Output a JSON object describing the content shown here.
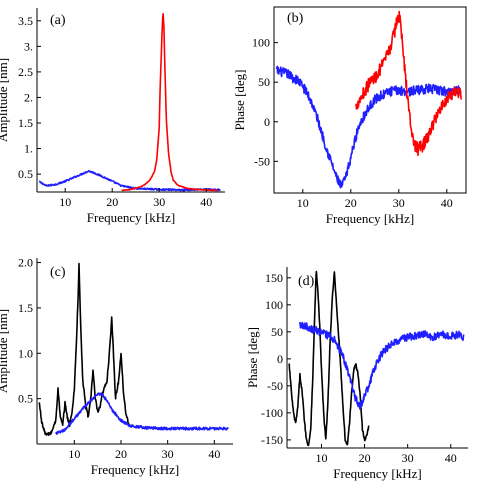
{
  "chart_data": [
    {
      "panel_label": "(a)",
      "type": "line",
      "frame": "axes",
      "xlabel": "Frequency [kHz]",
      "ylabel": "Amplitude [nm]",
      "xlim": [
        4,
        44
      ],
      "ylim": [
        0.15,
        3.75
      ],
      "xticks": [
        10,
        20,
        30,
        40
      ],
      "yticks": [
        0.5,
        1.0,
        1.5,
        2.0,
        2.5,
        3.0,
        3.5
      ],
      "ytick_labels": [
        "0.5",
        "1.",
        "1.5",
        "2.",
        "2.5",
        "3.",
        "3.5"
      ],
      "series": [
        {
          "color": "#1f1fff",
          "noise": 0.015,
          "x": [
            4.5,
            6,
            8,
            10,
            12,
            14,
            15,
            16,
            18,
            20,
            22,
            25,
            30,
            35,
            40,
            43
          ],
          "y": [
            0.35,
            0.27,
            0.3,
            0.36,
            0.44,
            0.52,
            0.56,
            0.53,
            0.45,
            0.36,
            0.27,
            0.22,
            0.2,
            0.19,
            0.2,
            0.19
          ]
        },
        {
          "color": "#ff0000",
          "noise": 0.004,
          "x": [
            22,
            24,
            26,
            27,
            28,
            29,
            29.5,
            30,
            30.2,
            30.5,
            30.8,
            31,
            31.2,
            31.5,
            32,
            32.5,
            33,
            34,
            36,
            38,
            40,
            42.5
          ],
          "y": [
            0.18,
            0.2,
            0.25,
            0.3,
            0.38,
            0.55,
            0.8,
            1.4,
            2.2,
            3.0,
            3.68,
            3.4,
            2.6,
            1.6,
            0.9,
            0.55,
            0.38,
            0.28,
            0.22,
            0.2,
            0.19,
            0.18
          ]
        }
      ]
    },
    {
      "panel_label": "(b)",
      "type": "line",
      "frame": "box",
      "xlabel": "Frequency [kHz]",
      "ylabel": "Phase [deg]",
      "xlim": [
        4,
        44
      ],
      "ylim": [
        -90,
        145
      ],
      "xticks": [
        10,
        20,
        30,
        40
      ],
      "yticks": [
        -50,
        0,
        50,
        100
      ],
      "series": [
        {
          "color": "#1f1fff",
          "noise": 6,
          "x": [
            4.5,
            6,
            7,
            8,
            9,
            10,
            11,
            12,
            13,
            14,
            15,
            16,
            17,
            18,
            19,
            20,
            21,
            22,
            23,
            24,
            25,
            26,
            28,
            30,
            32,
            34,
            36,
            38,
            40,
            42,
            43
          ],
          "y": [
            65,
            62,
            60,
            55,
            52,
            45,
            35,
            22,
            5,
            -15,
            -35,
            -52,
            -70,
            -82,
            -70,
            -45,
            -20,
            0,
            10,
            20,
            28,
            32,
            38,
            40,
            38,
            40,
            42,
            40,
            38,
            40,
            40
          ]
        },
        {
          "color": "#ff0000",
          "noise": 8,
          "x": [
            21,
            22,
            23,
            24,
            25,
            26,
            27,
            28,
            29,
            29.5,
            30,
            30.5,
            31,
            32,
            33,
            34,
            35,
            36,
            37,
            38,
            39,
            40,
            41,
            42,
            43
          ],
          "y": [
            20,
            30,
            40,
            50,
            55,
            65,
            75,
            90,
            110,
            125,
            135,
            120,
            80,
            20,
            -25,
            -35,
            -30,
            -20,
            -5,
            10,
            20,
            30,
            35,
            40,
            35
          ]
        }
      ]
    },
    {
      "panel_label": "(c)",
      "type": "line",
      "frame": "axes",
      "xlabel": "Frequency [kHz]",
      "ylabel": "Amplitude [nm]",
      "xlim": [
        2,
        44
      ],
      "ylim": [
        0.0,
        2.05
      ],
      "xticks": [
        10,
        20,
        30,
        40
      ],
      "yticks": [
        0.5,
        1.0,
        1.5,
        2.0
      ],
      "ytick_labels": [
        "0.5",
        "1.0",
        "1.5",
        "2.0"
      ],
      "series": [
        {
          "color": "#000000",
          "noise": 0.02,
          "x": [
            2.5,
            3,
            3.5,
            4,
            5,
            6,
            6.5,
            7,
            7.5,
            8,
            8.5,
            9,
            9.5,
            10,
            10.5,
            10.8,
            11,
            11.3,
            11.8,
            12.5,
            13,
            13.5,
            14,
            14.5,
            15,
            15.5,
            16,
            17,
            17.5,
            18,
            18.3,
            18.8,
            19.5,
            20,
            20.5,
            21,
            21.5,
            22
          ],
          "y": [
            0.45,
            0.25,
            0.15,
            0.1,
            0.12,
            0.25,
            0.6,
            0.3,
            0.2,
            0.45,
            0.3,
            0.2,
            0.35,
            0.6,
            1.2,
            1.6,
            1.97,
            1.4,
            0.7,
            0.4,
            0.3,
            0.5,
            0.8,
            0.5,
            0.35,
            0.4,
            0.55,
            0.7,
            1.0,
            1.38,
            1.1,
            0.5,
            0.7,
            1.0,
            0.6,
            0.35,
            0.25,
            0.2
          ]
        },
        {
          "color": "#1f1fff",
          "noise": 0.015,
          "x": [
            6,
            7,
            8,
            9,
            10,
            11,
            12,
            13,
            14,
            15,
            16,
            17,
            18,
            20,
            22,
            25,
            30,
            35,
            40,
            43
          ],
          "y": [
            0.12,
            0.13,
            0.16,
            0.22,
            0.28,
            0.34,
            0.4,
            0.45,
            0.5,
            0.55,
            0.54,
            0.48,
            0.38,
            0.26,
            0.2,
            0.18,
            0.17,
            0.17,
            0.17,
            0.17
          ]
        }
      ]
    },
    {
      "panel_label": "(d)",
      "type": "line",
      "frame": "axes",
      "xlabel": "Frequency [kHz]",
      "ylabel": "Phase [deg]",
      "xlim": [
        2,
        44
      ],
      "ylim": [
        -165,
        170
      ],
      "xticks": [
        10,
        20,
        30,
        40
      ],
      "yticks": [
        -150,
        -100,
        -50,
        0,
        50,
        100,
        150
      ],
      "series": [
        {
          "color": "#000000",
          "noise": 3,
          "x": [
            2.5,
            3,
            3.5,
            4,
            4.5,
            5,
            5.5,
            6,
            6.5,
            7,
            7.5,
            8,
            8.5,
            8.8,
            9.2,
            9.6,
            10,
            10.5,
            11,
            11.5,
            12,
            12.5,
            13,
            13.5,
            14,
            14.5,
            15,
            15.5,
            16,
            16.5,
            17,
            17.5,
            18,
            18.5,
            19,
            19.5,
            20,
            20.5,
            21
          ],
          "y": [
            -10,
            -60,
            -100,
            -120,
            -90,
            -30,
            -60,
            -110,
            -150,
            -160,
            -130,
            -30,
            100,
            165,
            120,
            60,
            -20,
            -100,
            -150,
            -80,
            30,
            110,
            160,
            100,
            40,
            -20,
            -90,
            -150,
            -160,
            -120,
            -60,
            -20,
            -10,
            -30,
            -70,
            -130,
            -150,
            -140,
            -125
          ]
        },
        {
          "color": "#1f1fff",
          "noise": 7,
          "x": [
            5,
            6,
            7,
            8,
            9,
            10,
            11,
            12,
            13,
            14,
            15,
            16,
            17,
            18,
            19,
            20,
            21,
            22,
            23,
            24,
            25,
            26,
            28,
            30,
            32,
            34,
            36,
            38,
            40,
            42,
            43
          ],
          "y": [
            65,
            62,
            58,
            55,
            52,
            48,
            45,
            42,
            35,
            20,
            5,
            -20,
            -50,
            -75,
            -88,
            -70,
            -50,
            -25,
            -5,
            10,
            18,
            25,
            35,
            40,
            42,
            45,
            40,
            45,
            42,
            45,
            40
          ]
        }
      ]
    }
  ]
}
